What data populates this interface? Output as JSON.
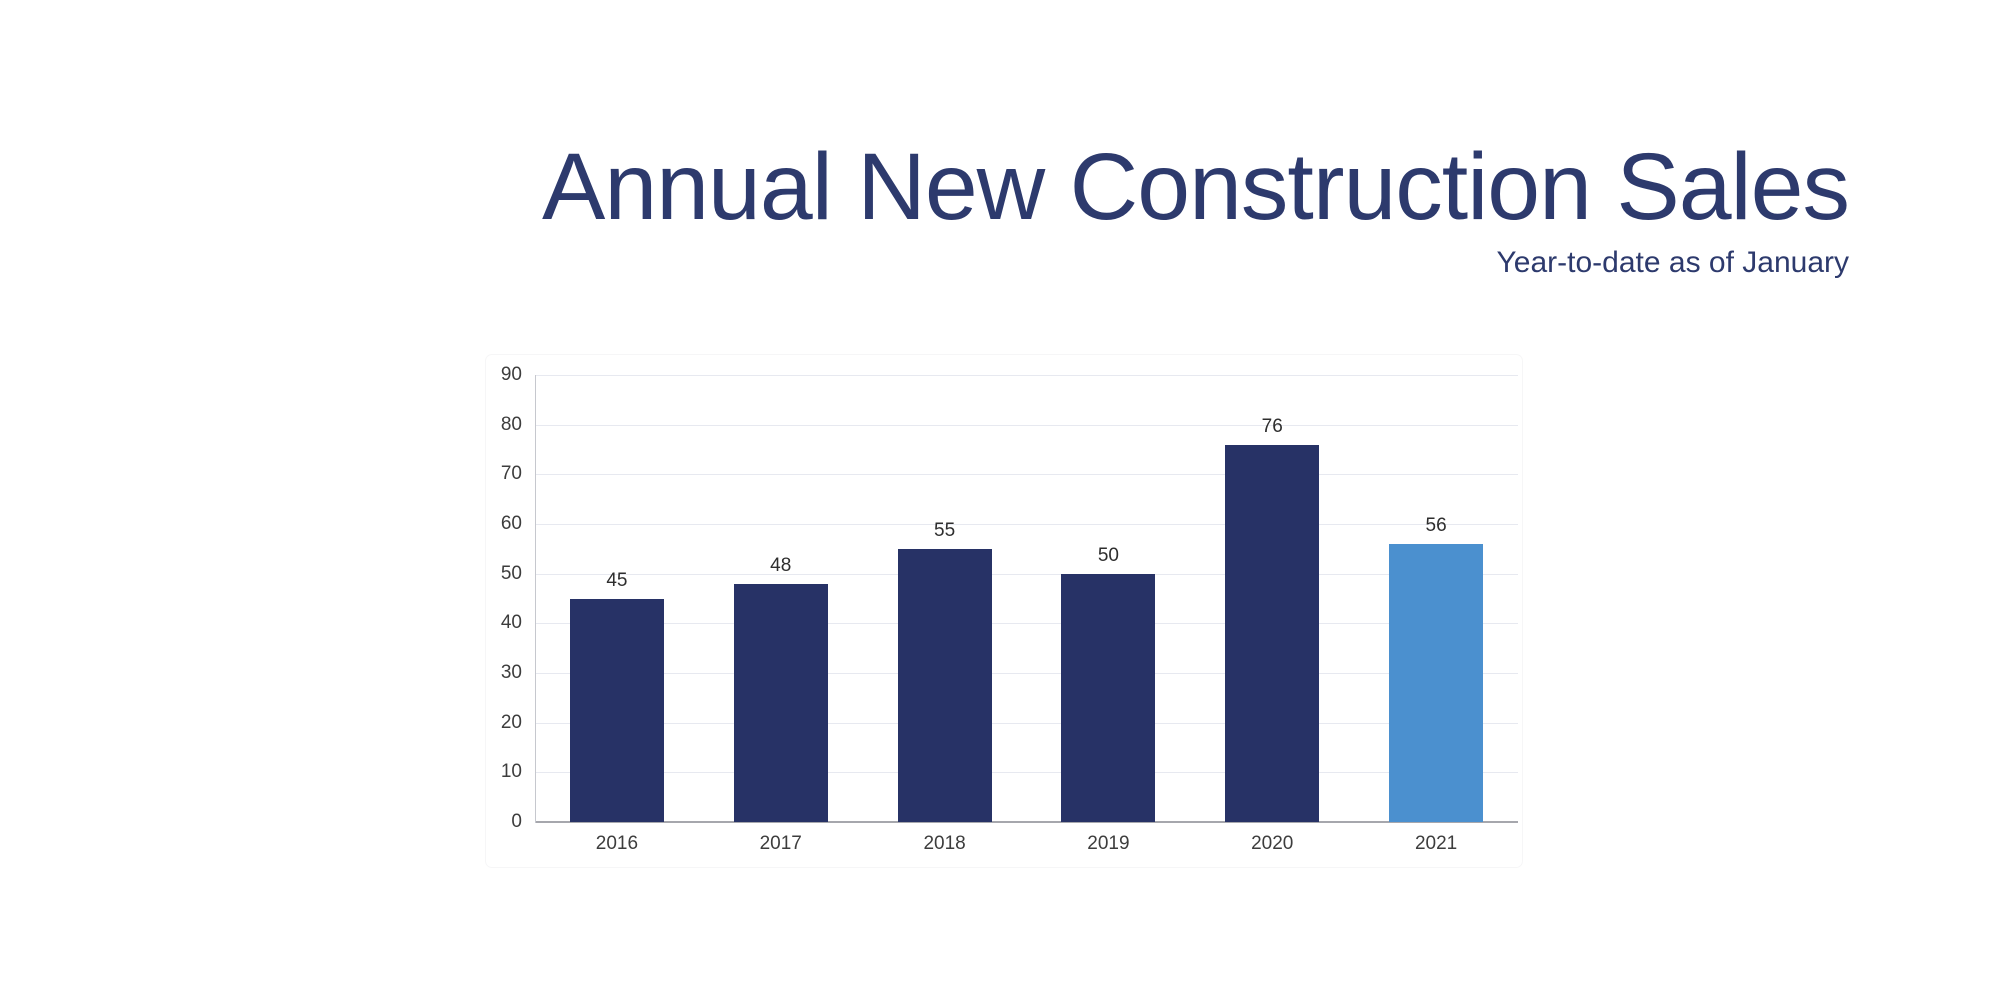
{
  "header": {
    "title": "Annual New Construction Sales",
    "subtitle": "Year-to-date as of January",
    "title_color": "#2d3a6d"
  },
  "chart_data": {
    "type": "bar",
    "title": "Annual New Construction Sales",
    "subtitle": "Year-to-date as of January",
    "categories": [
      "2016",
      "2017",
      "2018",
      "2019",
      "2020",
      "2021"
    ],
    "values": [
      45,
      48,
      55,
      50,
      76,
      56
    ],
    "data_labels": [
      "45",
      "48",
      "55",
      "50",
      "76",
      "56"
    ],
    "highlight_index": 5,
    "bar_color": "#273266",
    "highlight_color": "#4b90cf",
    "ylim": [
      0,
      90
    ],
    "ytick_step": 10,
    "ytick_labels": [
      "0",
      "10",
      "20",
      "30",
      "40",
      "50",
      "60",
      "70",
      "80",
      "90"
    ],
    "xlabel": "",
    "ylabel": "",
    "grid": true,
    "legend_position": "none",
    "gridline_color": "#e7e9f0",
    "x_axis_line_color": "#a6a7ad",
    "y_axis_line_color": "#c6c8ce",
    "tick_label_color": "#3d3d3d",
    "value_label_color": "#2e2e2e"
  }
}
